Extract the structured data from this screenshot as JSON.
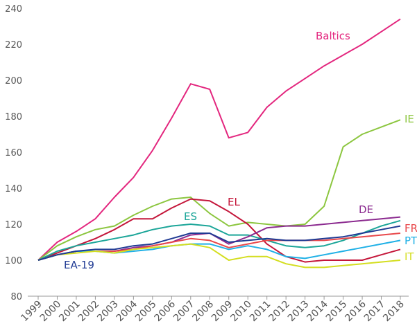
{
  "chart_data": {
    "type": "line",
    "x": [
      "1999",
      "2000",
      "2001",
      "2002",
      "2003",
      "2004",
      "2005",
      "2006",
      "2007",
      "2008",
      "2009",
      "2010",
      "2011",
      "2012",
      "2013",
      "2014",
      "2015",
      "2016",
      "2017",
      "2018"
    ],
    "ylim": [
      80,
      240
    ],
    "yticks": [
      80,
      100,
      120,
      140,
      160,
      180,
      200,
      220,
      240
    ],
    "grid": false,
    "series": [
      {
        "name": "Baltics",
        "color": "#e3267e",
        "values": [
          100,
          110,
          116,
          123,
          135,
          146,
          161,
          179,
          198,
          195,
          168,
          171,
          185,
          194,
          201,
          208,
          214,
          220,
          227,
          234
        ]
      },
      {
        "name": "IE",
        "color": "#8cc63f",
        "values": [
          100,
          108,
          113,
          117,
          119,
          125,
          130,
          134,
          135,
          126,
          119,
          121,
          120,
          119,
          120,
          130,
          163,
          170,
          174,
          178
        ]
      },
      {
        "name": "EL",
        "color": "#c4163a",
        "values": [
          100,
          104,
          108,
          112,
          117,
          123,
          123,
          129,
          134,
          133,
          127,
          120,
          109,
          102,
          99,
          100,
          100,
          100,
          103,
          106
        ]
      },
      {
        "name": "ES",
        "color": "#1aa598",
        "values": [
          100,
          105,
          108,
          110,
          112,
          114,
          117,
          119,
          120,
          119,
          114,
          114,
          111,
          108,
          107,
          108,
          111,
          115,
          119,
          122
        ]
      },
      {
        "name": "DE",
        "color": "#8b2a8f",
        "values": [
          100,
          103,
          105,
          105,
          105,
          107,
          108,
          110,
          114,
          115,
          109,
          113,
          118,
          119,
          119,
          120,
          121,
          122,
          123,
          124
        ]
      },
      {
        "name": "FR",
        "color": "#e8474a",
        "values": [
          100,
          103,
          105,
          105,
          105,
          106,
          108,
          110,
          112,
          111,
          107,
          109,
          111,
          111,
          111,
          111,
          112,
          113,
          114,
          115
        ]
      },
      {
        "name": "PT",
        "color": "#1fb0e6",
        "values": [
          100,
          103,
          105,
          105,
          104,
          105,
          106,
          108,
          109,
          109,
          106,
          108,
          106,
          102,
          101,
          103,
          105,
          107,
          109,
          111
        ]
      },
      {
        "name": "IT",
        "color": "#d4de20",
        "values": [
          100,
          103,
          104,
          105,
          104,
          106,
          107,
          108,
          109,
          107,
          100,
          102,
          102,
          98,
          96,
          96,
          97,
          98,
          99,
          100
        ]
      },
      {
        "name": "EA-19",
        "color": "#1f3a93",
        "values": [
          100,
          103,
          105,
          106,
          106,
          108,
          109,
          112,
          115,
          115,
          110,
          111,
          112,
          111,
          111,
          112,
          113,
          115,
          117,
          119
        ]
      }
    ]
  }
}
